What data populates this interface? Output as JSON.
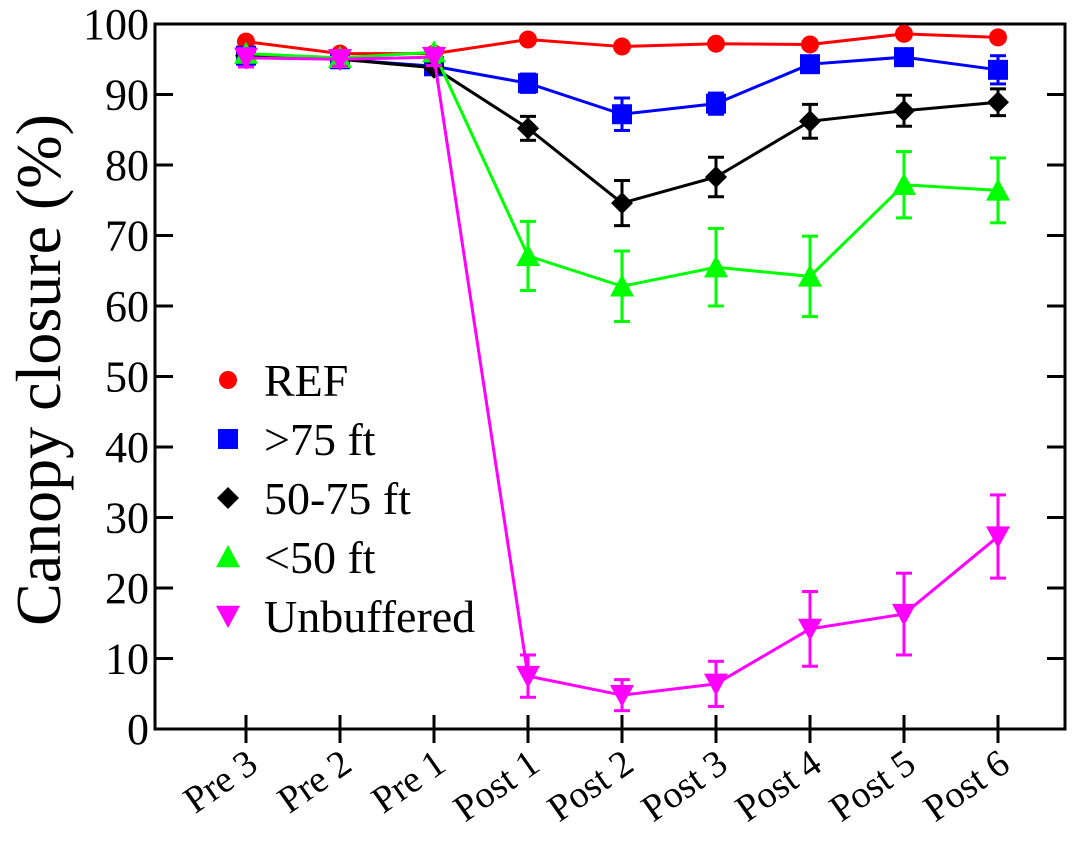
{
  "chart_data": {
    "type": "line",
    "title": "",
    "xlabel": "",
    "ylabel": "Canopy closure (%)",
    "ylim": [
      0,
      100
    ],
    "yticks": [
      0,
      10,
      20,
      30,
      40,
      50,
      60,
      70,
      80,
      90,
      100
    ],
    "categories": [
      "Pre 3",
      "Pre 2",
      "Pre 1",
      "Post 1",
      "Post 2",
      "Post 3",
      "Post 4",
      "Post 5",
      "Post 6"
    ],
    "grid": false,
    "legend_position": "left-middle",
    "series": [
      {
        "name": "REF",
        "color": "#ff0000",
        "marker": "circle",
        "values": [
          97.5,
          95.8,
          95.8,
          97.8,
          96.8,
          97.2,
          97.1,
          98.6,
          98.1
        ],
        "errors": [
          0,
          0,
          0,
          0,
          0,
          0,
          0,
          0,
          0
        ]
      },
      {
        "name": ">75 ft",
        "color": "#0000ff",
        "marker": "square",
        "values": [
          95.5,
          95.0,
          94.0,
          91.6,
          87.2,
          88.7,
          94.3,
          95.3,
          93.5
        ],
        "errors": [
          0,
          0,
          0,
          1.3,
          2.3,
          1.5,
          1.0,
          1.0,
          2.0
        ]
      },
      {
        "name": "50-75 ft",
        "color": "#000000",
        "marker": "diamond",
        "values": [
          95.5,
          95.0,
          93.8,
          85.2,
          74.6,
          78.3,
          86.2,
          87.7,
          88.9
        ],
        "errors": [
          0,
          0,
          0,
          1.7,
          3.2,
          2.8,
          2.4,
          2.2,
          1.9
        ]
      },
      {
        "name": "<50 ft",
        "color": "#00ff00",
        "marker": "triangle-up",
        "values": [
          95.8,
          95.2,
          96.0,
          67.1,
          62.8,
          65.5,
          64.2,
          77.2,
          76.4
        ],
        "errors": [
          0,
          0,
          0,
          4.9,
          5.0,
          5.5,
          5.7,
          4.7,
          4.6
        ]
      },
      {
        "name": "Unbuffered",
        "color": "#ff00ff",
        "marker": "triangle-down",
        "values": [
          95.2,
          95.0,
          95.3,
          7.5,
          4.8,
          6.4,
          14.2,
          16.3,
          27.3
        ],
        "errors": [
          1.3,
          1.0,
          1.2,
          3.0,
          2.2,
          3.2,
          5.3,
          5.8,
          5.9
        ]
      }
    ]
  }
}
